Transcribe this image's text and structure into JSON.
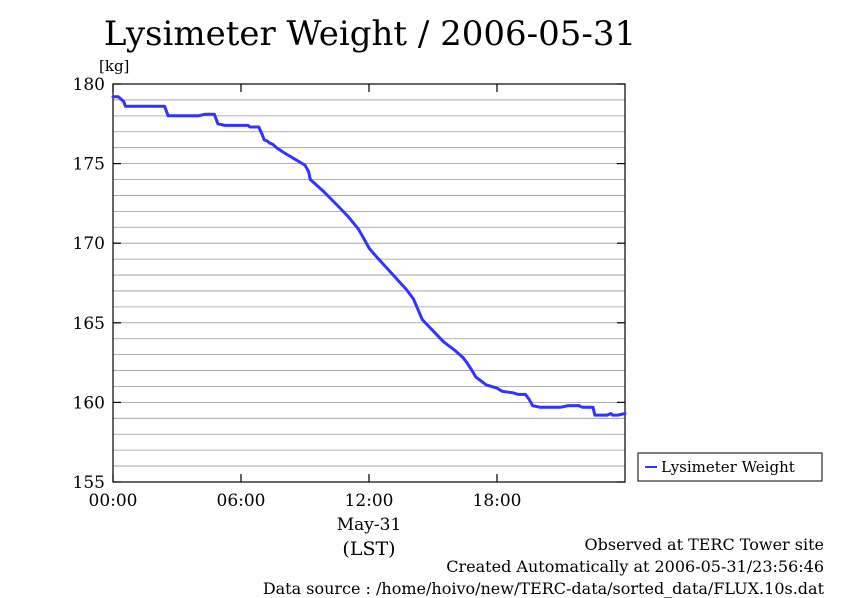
{
  "chart_data": {
    "type": "line",
    "title": "Lysimeter Weight / 2006-05-31",
    "ylabel": "[kg]",
    "xlabel": "(LST)",
    "date_label": "May-31",
    "ylim": [
      155,
      180
    ],
    "yticks": [
      155,
      160,
      165,
      170,
      175,
      180
    ],
    "y_grid_step": 1,
    "xlim": [
      "00:00",
      "24:00"
    ],
    "xticks": [
      "00:00",
      "06:00",
      "12:00",
      "18:00"
    ],
    "grid": "horizontal",
    "legend_position": "right",
    "series": [
      {
        "name": "Lysimeter Weight",
        "color": "#3333ff",
        "x": [
          "00:00",
          "00:15",
          "00:30",
          "00:35",
          "02:25",
          "02:35",
          "03:30",
          "04:00",
          "04:20",
          "04:45",
          "04:55",
          "05:15",
          "05:40",
          "06:20",
          "06:25",
          "06:50",
          "07:00",
          "07:05",
          "07:15",
          "07:20",
          "07:30",
          "07:40",
          "08:00",
          "08:30",
          "08:45",
          "09:00",
          "09:10",
          "09:15",
          "09:50",
          "10:30",
          "11:00",
          "11:30",
          "11:45",
          "12:00",
          "12:15",
          "13:00",
          "13:45",
          "14:05",
          "14:30",
          "15:00",
          "15:30",
          "16:00",
          "16:25",
          "16:35",
          "16:50",
          "17:00",
          "17:30",
          "18:00",
          "18:15",
          "18:45",
          "19:00",
          "19:10",
          "19:20",
          "19:30",
          "19:40",
          "20:00",
          "21:00",
          "21:20",
          "21:50",
          "22:00",
          "22:30",
          "22:35",
          "23:10",
          "23:20",
          "23:25",
          "23:40",
          "24:00"
        ],
        "y": [
          179.2,
          179.2,
          178.9,
          178.6,
          178.6,
          178.0,
          178.0,
          178.0,
          178.1,
          178.1,
          177.5,
          177.4,
          177.4,
          177.4,
          177.3,
          177.3,
          176.8,
          176.5,
          176.4,
          176.3,
          176.2,
          176.0,
          175.7,
          175.3,
          175.1,
          174.9,
          174.5,
          174.0,
          173.3,
          172.4,
          171.7,
          170.9,
          170.3,
          169.7,
          169.3,
          168.2,
          167.1,
          166.5,
          165.2,
          164.5,
          163.8,
          163.3,
          162.8,
          162.5,
          162.0,
          161.6,
          161.1,
          160.9,
          160.7,
          160.6,
          160.5,
          160.5,
          160.5,
          160.2,
          159.8,
          159.7,
          159.7,
          159.8,
          159.8,
          159.7,
          159.7,
          159.2,
          159.2,
          159.3,
          159.2,
          159.2,
          159.3
        ]
      }
    ]
  },
  "footer": {
    "line1": "Observed at TERC Tower site",
    "line2": "Created Automatically at 2006-05-31/23:56:46",
    "line3": "Data source : /home/hoivo/new/TERC-data/sorted_data/FLUX.10s.dat"
  }
}
